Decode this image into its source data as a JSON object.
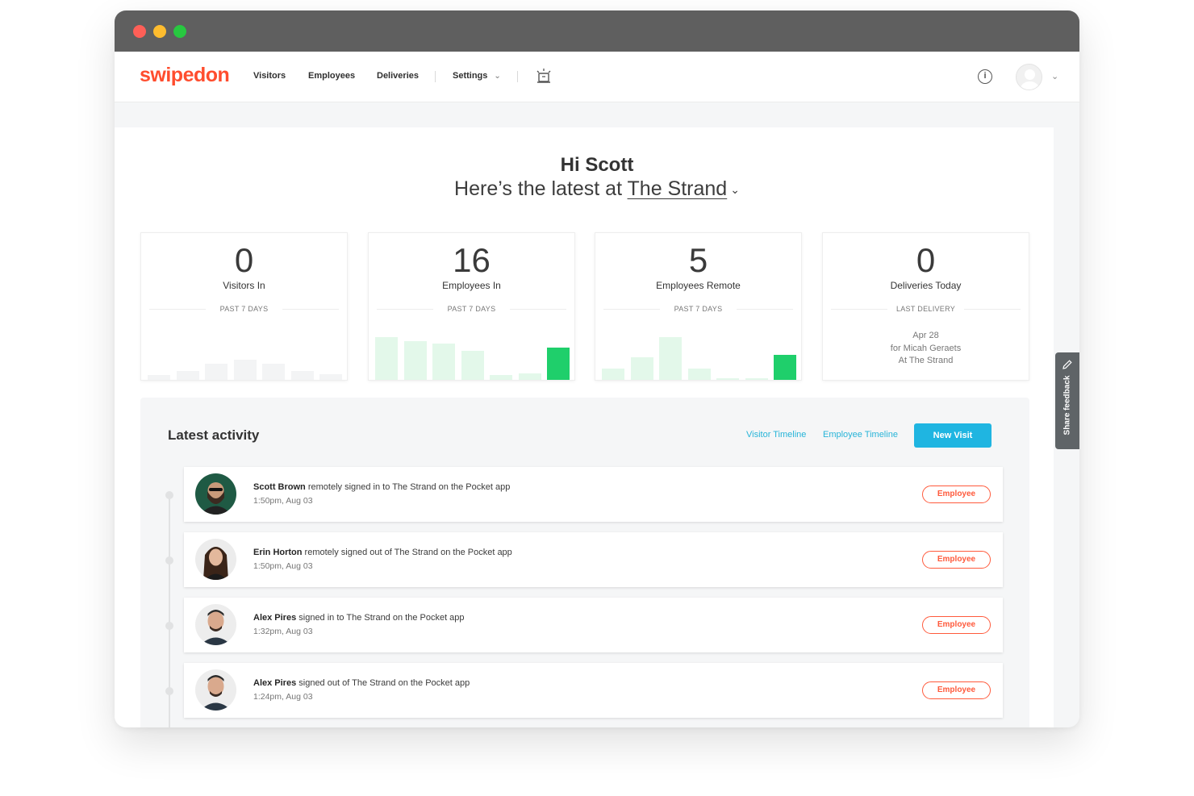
{
  "brand": {
    "logo": "swipedon",
    "accent": "#ff4d2e"
  },
  "nav": {
    "items": [
      "Visitors",
      "Employees",
      "Deliveries"
    ],
    "settings": "Settings"
  },
  "greeting": {
    "title": "Hi Scott",
    "prefix": "Here’s the latest at ",
    "location": "The Strand"
  },
  "stats": [
    {
      "value": "0",
      "label": "Visitors In",
      "period": "PAST 7 DAYS",
      "bars": [
        0.1,
        0.2,
        0.35,
        0.45,
        0.35,
        0.2,
        0.12
      ],
      "highlight": -1
    },
    {
      "value": "16",
      "label": "Employees In",
      "period": "PAST 7 DAYS",
      "bars": [
        0.95,
        0.85,
        0.8,
        0.65,
        0.1,
        0.15,
        0.72
      ],
      "highlight": 6
    },
    {
      "value": "5",
      "label": "Employees Remote",
      "period": "PAST 7 DAYS",
      "bars": [
        0.25,
        0.5,
        0.95,
        0.25,
        0.0,
        0.0,
        0.55
      ],
      "highlight": 6
    },
    {
      "value": "0",
      "label": "Deliveries Today",
      "period": "LAST DELIVERY",
      "delivery": [
        "Apr 28",
        "for Micah Geraets",
        "At The Strand"
      ]
    }
  ],
  "activity": {
    "title": "Latest activity",
    "links": [
      "Visitor Timeline",
      "Employee Timeline"
    ],
    "new_visit": "New Visit",
    "rows": [
      {
        "name": "Scott Brown",
        "action": " remotely signed in to The Strand on the Pocket app",
        "time": "1:50pm, Aug 03",
        "badge": "Employee"
      },
      {
        "name": "Erin Horton",
        "action": " remotely signed out of The Strand on the Pocket app",
        "time": "1:50pm, Aug 03",
        "badge": "Employee"
      },
      {
        "name": "Alex Pires",
        "action": " signed in to The Strand on the Pocket app",
        "time": "1:32pm, Aug 03",
        "badge": "Employee"
      },
      {
        "name": "Alex Pires",
        "action": " signed out of The Strand on the Pocket app",
        "time": "1:24pm, Aug 03",
        "badge": "Employee"
      }
    ]
  },
  "feedback": "Share feedback",
  "icons": [
    "kiosk-icon",
    "info-icon",
    "avatar-icon",
    "chevron-down-icon",
    "pencil-icon"
  ]
}
